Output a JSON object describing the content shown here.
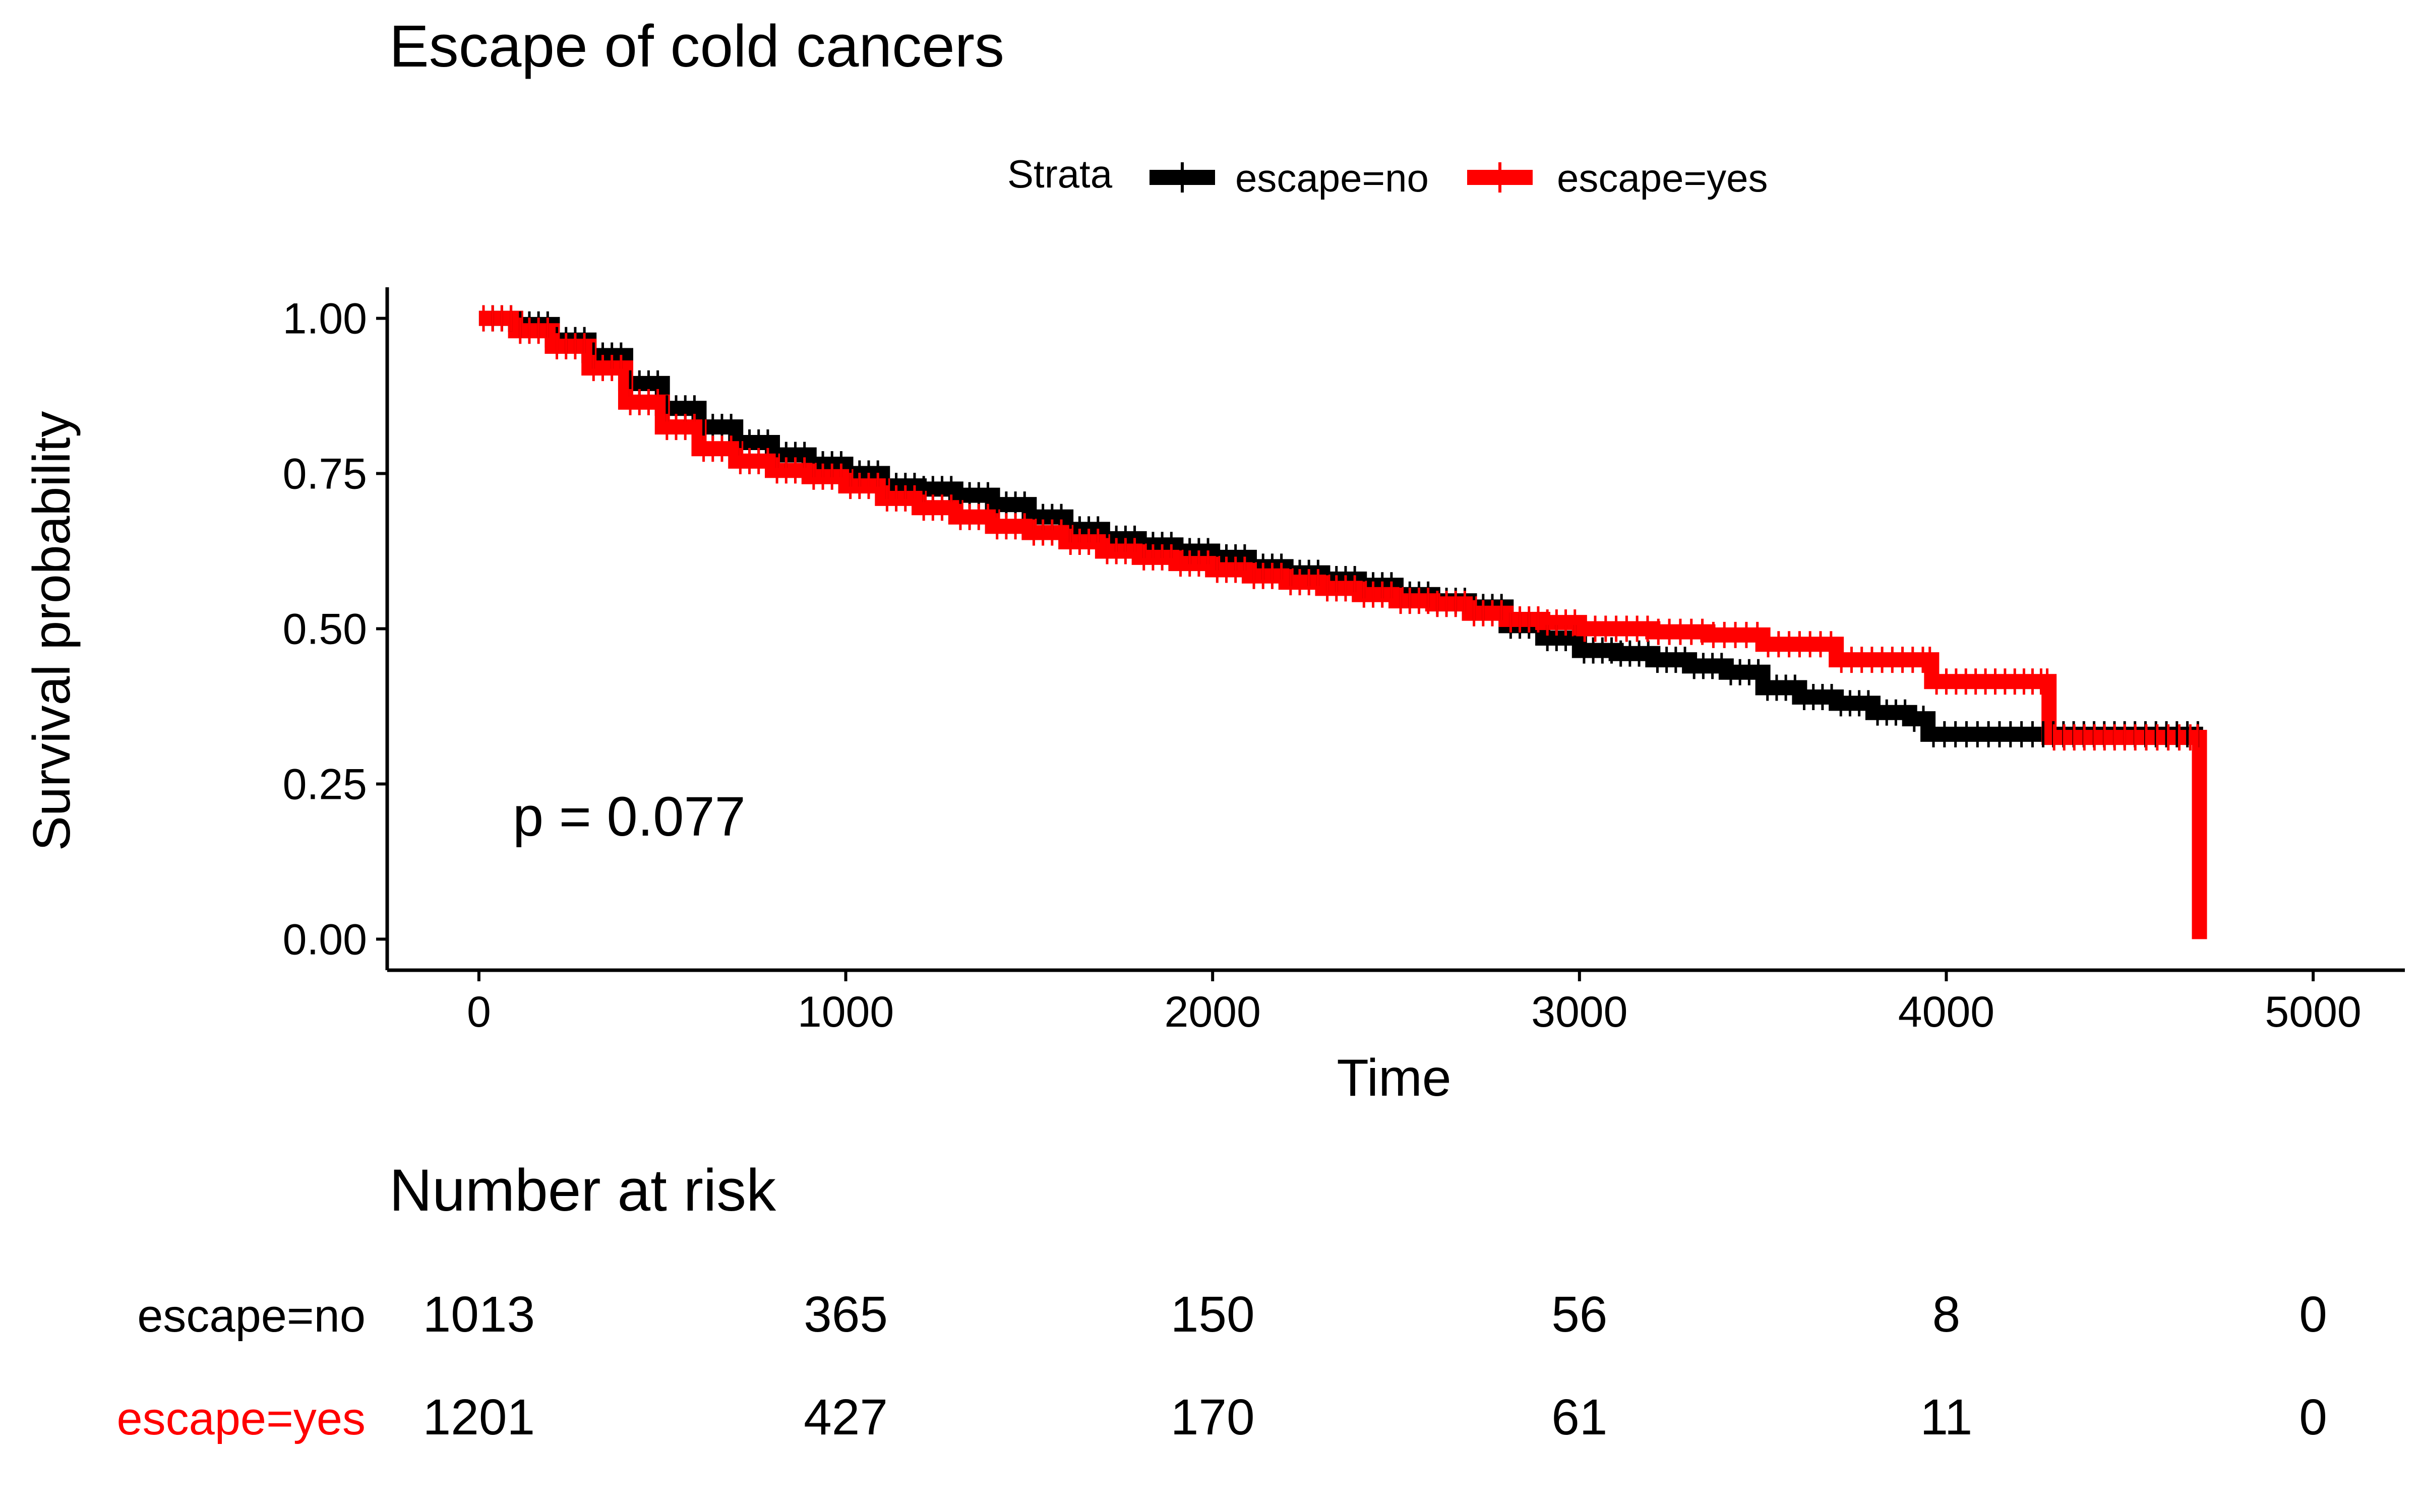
{
  "chart_data": {
    "type": "line",
    "subtype": "kaplan-meier",
    "title": "Escape of cold cancers",
    "xlabel": "Time",
    "ylabel": "Survival probability",
    "xlim": [
      -250,
      5250
    ],
    "ylim": [
      -0.05,
      1.05
    ],
    "xticks": [
      0,
      1000,
      2000,
      3000,
      4000,
      5000
    ],
    "yticks": [
      0.0,
      0.25,
      0.5,
      0.75,
      1.0
    ],
    "ytick_labels": [
      "0.00",
      "0.25",
      "0.50",
      "0.75",
      "1.00"
    ],
    "grid": false,
    "legend": {
      "title": "Strata",
      "position": "top"
    },
    "annotation": "p = 0.077",
    "series": [
      {
        "name": "escape=no",
        "color": "#000000",
        "points": [
          [
            0,
            1.0
          ],
          [
            100,
            0.99
          ],
          [
            200,
            0.965
          ],
          [
            300,
            0.94
          ],
          [
            400,
            0.895
          ],
          [
            500,
            0.855
          ],
          [
            600,
            0.825
          ],
          [
            700,
            0.8
          ],
          [
            800,
            0.78
          ],
          [
            900,
            0.765
          ],
          [
            1000,
            0.75
          ],
          [
            1100,
            0.73
          ],
          [
            1200,
            0.725
          ],
          [
            1300,
            0.715
          ],
          [
            1400,
            0.7
          ],
          [
            1500,
            0.68
          ],
          [
            1600,
            0.66
          ],
          [
            1700,
            0.645
          ],
          [
            1800,
            0.635
          ],
          [
            1900,
            0.625
          ],
          [
            2000,
            0.615
          ],
          [
            2100,
            0.6
          ],
          [
            2200,
            0.59
          ],
          [
            2300,
            0.58
          ],
          [
            2400,
            0.57
          ],
          [
            2500,
            0.555
          ],
          [
            2600,
            0.545
          ],
          [
            2700,
            0.535
          ],
          [
            2800,
            0.505
          ],
          [
            2900,
            0.485
          ],
          [
            3000,
            0.465
          ],
          [
            3100,
            0.46
          ],
          [
            3200,
            0.45
          ],
          [
            3300,
            0.44
          ],
          [
            3400,
            0.43
          ],
          [
            3500,
            0.405
          ],
          [
            3600,
            0.39
          ],
          [
            3700,
            0.38
          ],
          [
            3800,
            0.365
          ],
          [
            3900,
            0.355
          ],
          [
            3950,
            0.33
          ],
          [
            4100,
            0.33
          ],
          [
            4250,
            0.33
          ],
          [
            4500,
            0.33
          ],
          [
            4700,
            0.33
          ]
        ]
      },
      {
        "name": "escape=yes",
        "color": "#ff0000",
        "points": [
          [
            0,
            1.0
          ],
          [
            100,
            0.98
          ],
          [
            200,
            0.955
          ],
          [
            300,
            0.92
          ],
          [
            400,
            0.865
          ],
          [
            500,
            0.825
          ],
          [
            600,
            0.79
          ],
          [
            700,
            0.77
          ],
          [
            800,
            0.755
          ],
          [
            900,
            0.745
          ],
          [
            1000,
            0.73
          ],
          [
            1100,
            0.71
          ],
          [
            1200,
            0.695
          ],
          [
            1300,
            0.68
          ],
          [
            1400,
            0.665
          ],
          [
            1500,
            0.655
          ],
          [
            1600,
            0.64
          ],
          [
            1700,
            0.625
          ],
          [
            1800,
            0.615
          ],
          [
            1900,
            0.605
          ],
          [
            2000,
            0.595
          ],
          [
            2100,
            0.585
          ],
          [
            2200,
            0.575
          ],
          [
            2300,
            0.565
          ],
          [
            2400,
            0.555
          ],
          [
            2500,
            0.545
          ],
          [
            2600,
            0.54
          ],
          [
            2700,
            0.525
          ],
          [
            2800,
            0.515
          ],
          [
            2900,
            0.51
          ],
          [
            3000,
            0.5
          ],
          [
            3200,
            0.495
          ],
          [
            3350,
            0.49
          ],
          [
            3500,
            0.475
          ],
          [
            3700,
            0.45
          ],
          [
            3950,
            0.45
          ],
          [
            3960,
            0.415
          ],
          [
            4200,
            0.415
          ],
          [
            4270,
            0.415
          ],
          [
            4280,
            0.325
          ],
          [
            4500,
            0.325
          ],
          [
            4680,
            0.325
          ],
          [
            4690,
            0.0
          ]
        ]
      }
    ],
    "risk_table": {
      "title": "Number at risk",
      "times": [
        0,
        1000,
        2000,
        3000,
        4000,
        5000
      ],
      "rows": [
        {
          "name": "escape=no",
          "color": "#000000",
          "values": [
            1013,
            365,
            150,
            56,
            8,
            0
          ]
        },
        {
          "name": "escape=yes",
          "color": "#ff0000",
          "values": [
            1201,
            427,
            170,
            61,
            11,
            0
          ]
        }
      ]
    }
  }
}
